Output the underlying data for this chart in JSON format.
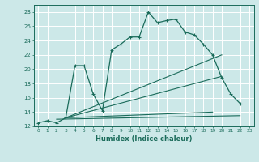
{
  "xlabel": "Humidex (Indice chaleur)",
  "bg_color": "#cce8e8",
  "grid_color": "#ffffff",
  "line_color": "#1a6b5a",
  "xlim": [
    -0.5,
    23.5
  ],
  "ylim": [
    12,
    29
  ],
  "xticks": [
    0,
    1,
    2,
    3,
    4,
    5,
    6,
    7,
    8,
    9,
    10,
    11,
    12,
    13,
    14,
    15,
    16,
    17,
    18,
    19,
    20,
    21,
    22,
    23
  ],
  "yticks": [
    12,
    14,
    16,
    18,
    20,
    22,
    24,
    26,
    28
  ],
  "series1_x": [
    0,
    1,
    2,
    3,
    4,
    5,
    6,
    7,
    8,
    9,
    10,
    11,
    12,
    13,
    14,
    15,
    16,
    17,
    18,
    19,
    20,
    21,
    22
  ],
  "series1_y": [
    12.5,
    12.8,
    12.5,
    13.2,
    20.5,
    20.5,
    16.5,
    14.2,
    22.7,
    23.5,
    24.5,
    24.5,
    28.0,
    26.5,
    26.8,
    27.0,
    25.2,
    24.8,
    23.5,
    22.0,
    18.8,
    16.5,
    15.2
  ],
  "series2_x": [
    2,
    22
  ],
  "series2_y": [
    13.0,
    13.5
  ],
  "series3_x": [
    3,
    20
  ],
  "series3_y": [
    13.2,
    22.0
  ],
  "series4_x": [
    3,
    20
  ],
  "series4_y": [
    13.2,
    19.0
  ],
  "series5_x": [
    3,
    19
  ],
  "series5_y": [
    13.2,
    14.0
  ]
}
